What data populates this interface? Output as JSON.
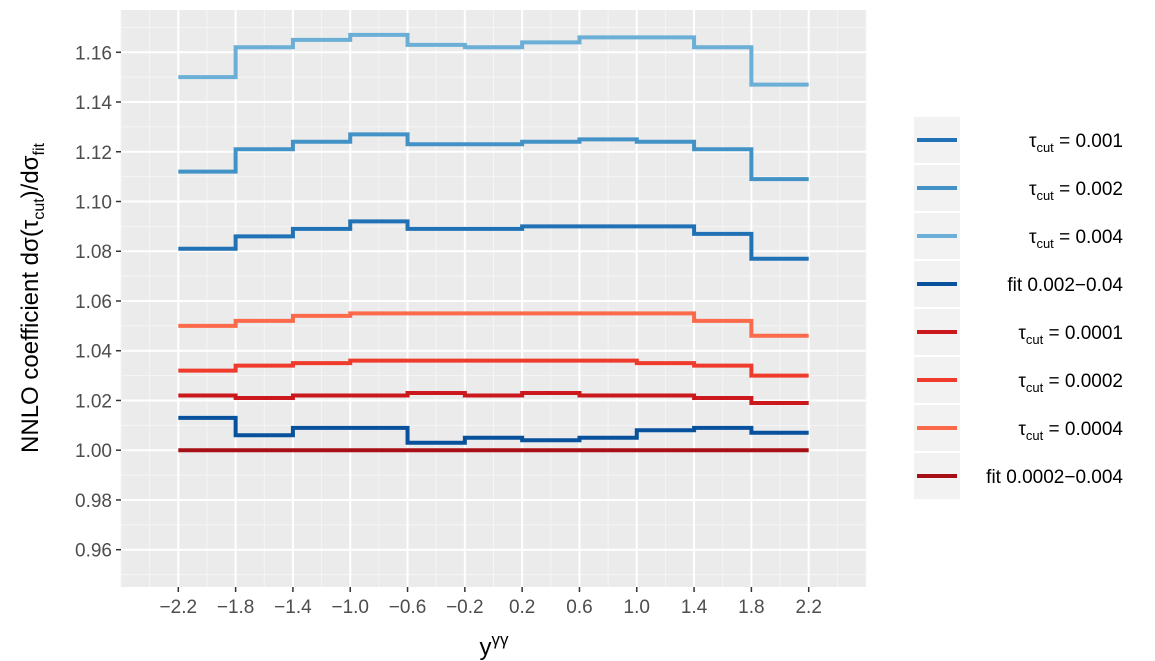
{
  "chart_data": {
    "type": "line",
    "step": true,
    "xlabel": "y",
    "xlabel_sup": "γγ",
    "ylabel": "NNLO coefficient dσ(τ",
    "ylabel_sub1": "cut",
    "ylabel_mid": ")/dσ",
    "ylabel_sub2": "fit",
    "xlim": [
      -2.6,
      2.6
    ],
    "ylim": [
      0.945,
      1.177
    ],
    "x_tick_labels": [
      "−2.2",
      "−1.8",
      "−1.4",
      "−1.0",
      "−0.6",
      "−0.2",
      "0.2",
      "0.6",
      "1.0",
      "1.4",
      "1.8",
      "2.2"
    ],
    "y_tick_labels": [
      "0.96",
      "0.98",
      "1.00",
      "1.02",
      "1.04",
      "1.06",
      "1.08",
      "1.10",
      "1.12",
      "1.14",
      "1.16"
    ],
    "bin_edges": [
      -2.2,
      -1.8,
      -1.4,
      -1.0,
      -0.6,
      -0.2,
      0.2,
      0.6,
      1.0,
      1.4,
      1.8,
      2.2
    ],
    "legend_position": "right",
    "grid": true,
    "series": [
      {
        "name": "τ",
        "name_sub": "cut",
        "name_rest": " = 0.001",
        "color": "#2171b5",
        "values": [
          1.081,
          1.086,
          1.089,
          1.092,
          1.089,
          1.089,
          1.09,
          1.09,
          1.09,
          1.087,
          1.077
        ]
      },
      {
        "name": "τ",
        "name_sub": "cut",
        "name_rest": " = 0.002",
        "color": "#4292c6",
        "values": [
          1.112,
          1.121,
          1.124,
          1.127,
          1.123,
          1.123,
          1.124,
          1.125,
          1.124,
          1.121,
          1.109
        ]
      },
      {
        "name": "τ",
        "name_sub": "cut",
        "name_rest": " = 0.004",
        "color": "#6baed6",
        "values": [
          1.15,
          1.162,
          1.165,
          1.167,
          1.163,
          1.162,
          1.164,
          1.166,
          1.166,
          1.162,
          1.147
        ]
      },
      {
        "name": "fit 0.002−0.04",
        "name_sub": "",
        "name_rest": "",
        "color": "#08519c",
        "values": [
          1.013,
          1.006,
          1.009,
          1.009,
          1.003,
          1.005,
          1.004,
          1.005,
          1.008,
          1.009,
          1.007
        ]
      },
      {
        "name": "τ",
        "name_sub": "cut",
        "name_rest": " = 0.0001",
        "color": "#cb181d",
        "values": [
          1.022,
          1.021,
          1.022,
          1.022,
          1.023,
          1.022,
          1.023,
          1.022,
          1.022,
          1.021,
          1.019
        ]
      },
      {
        "name": "τ",
        "name_sub": "cut",
        "name_rest": " = 0.0002",
        "color": "#ef3b2c",
        "values": [
          1.032,
          1.034,
          1.035,
          1.036,
          1.036,
          1.036,
          1.036,
          1.036,
          1.035,
          1.034,
          1.03
        ]
      },
      {
        "name": "τ",
        "name_sub": "cut",
        "name_rest": " = 0.0004",
        "color": "#fb6a4a",
        "values": [
          1.05,
          1.052,
          1.054,
          1.055,
          1.055,
          1.055,
          1.055,
          1.055,
          1.055,
          1.052,
          1.046
        ]
      },
      {
        "name": "fit 0.0002−0.004",
        "name_sub": "",
        "name_rest": "",
        "color": "#a50f15",
        "values": [
          1.0,
          1.0,
          1.0,
          1.0,
          1.0,
          1.0,
          1.0,
          1.0,
          1.0,
          1.0,
          1.0
        ]
      }
    ]
  }
}
